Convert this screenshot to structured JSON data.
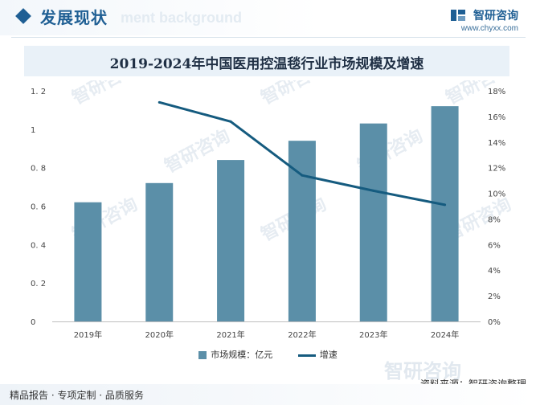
{
  "header": {
    "section_title": "发展现状",
    "ghost_text": "ment background",
    "brand_name": "智研咨询",
    "brand_url": "www.chyxx.com"
  },
  "watermark_text": "智研咨询",
  "chart_data": {
    "type": "bar",
    "title": "2019-2024年中国医用控温毯行业市场规模及增速",
    "categories": [
      "2019年",
      "2020年",
      "2021年",
      "2022年",
      "2023年",
      "2024年"
    ],
    "series": [
      {
        "name": "市场规模：亿元",
        "type": "bar",
        "axis": "left",
        "values": [
          0.62,
          0.72,
          0.84,
          0.94,
          1.03,
          1.12
        ],
        "color": "#5b8fa8"
      },
      {
        "name": "增速",
        "type": "line",
        "axis": "right",
        "values": [
          null,
          17.1,
          15.6,
          11.4,
          10.2,
          9.1
        ],
        "color": "#155b7f"
      }
    ],
    "y_left": {
      "ticks": [
        "0",
        "0. 2",
        "0. 4",
        "0. 6",
        "0. 8",
        "1",
        "1. 2"
      ],
      "min": 0,
      "max": 1.2
    },
    "y_right": {
      "ticks": [
        "0%",
        "2%",
        "4%",
        "6%",
        "8%",
        "10%",
        "12%",
        "14%",
        "16%",
        "18%"
      ],
      "min": 0,
      "max": 18
    },
    "grid": false,
    "legend_position": "bottom"
  },
  "source": "资料来源：智研咨询整理",
  "footer": "精品报告 · 专项定制 · 品质服务"
}
